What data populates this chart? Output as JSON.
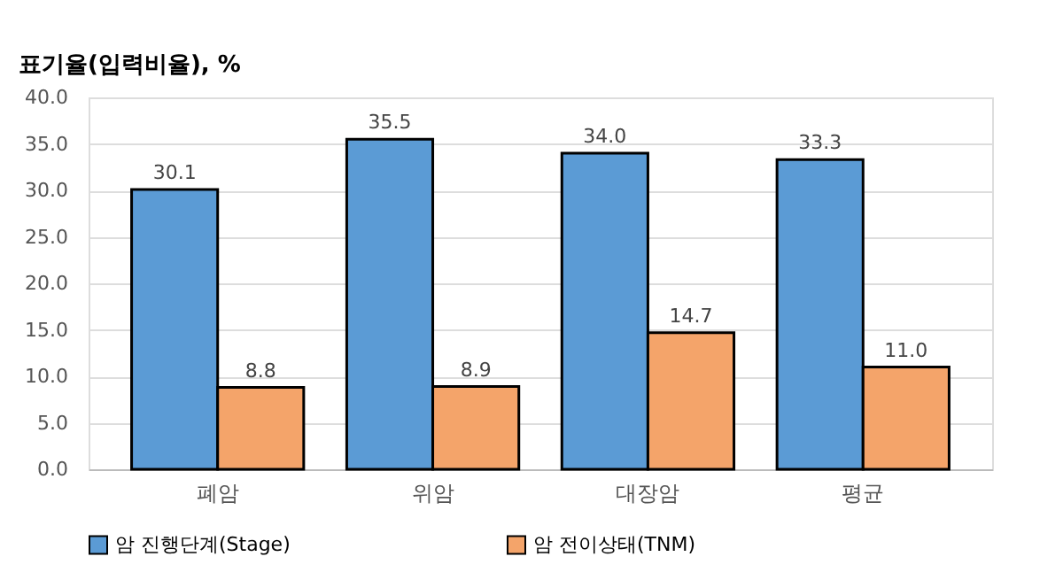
{
  "chart_data": {
    "type": "bar",
    "ylabel": "표기율(입력비율), %",
    "categories": [
      "폐암",
      "위암",
      "대장암",
      "평균"
    ],
    "series": [
      {
        "name": "암 진행단계(Stage)",
        "color": "#5b9bd5",
        "values": [
          30.1,
          35.5,
          34.0,
          33.3
        ],
        "value_labels": [
          "30.1",
          "35.5",
          "34.0",
          "33.3"
        ]
      },
      {
        "name": "암 전이상태(TNM)",
        "color": "#f4a46a",
        "values": [
          8.8,
          8.9,
          14.7,
          11.0
        ],
        "value_labels": [
          "8.8",
          "8.9",
          "14.7",
          "11.0"
        ]
      }
    ],
    "ylim": [
      0,
      40
    ],
    "yticks": [
      {
        "value": 0,
        "label": "0.0"
      },
      {
        "value": 5,
        "label": "5.0"
      },
      {
        "value": 10,
        "label": "10.0"
      },
      {
        "value": 15,
        "label": "15.0"
      },
      {
        "value": 20,
        "label": "20.0"
      },
      {
        "value": 25,
        "label": "25.0"
      },
      {
        "value": 30,
        "label": "30.0"
      },
      {
        "value": 35,
        "label": "35.0"
      },
      {
        "value": 40,
        "label": "40.0"
      }
    ],
    "grid": "y",
    "legend": "bottom",
    "data_labels": true
  }
}
